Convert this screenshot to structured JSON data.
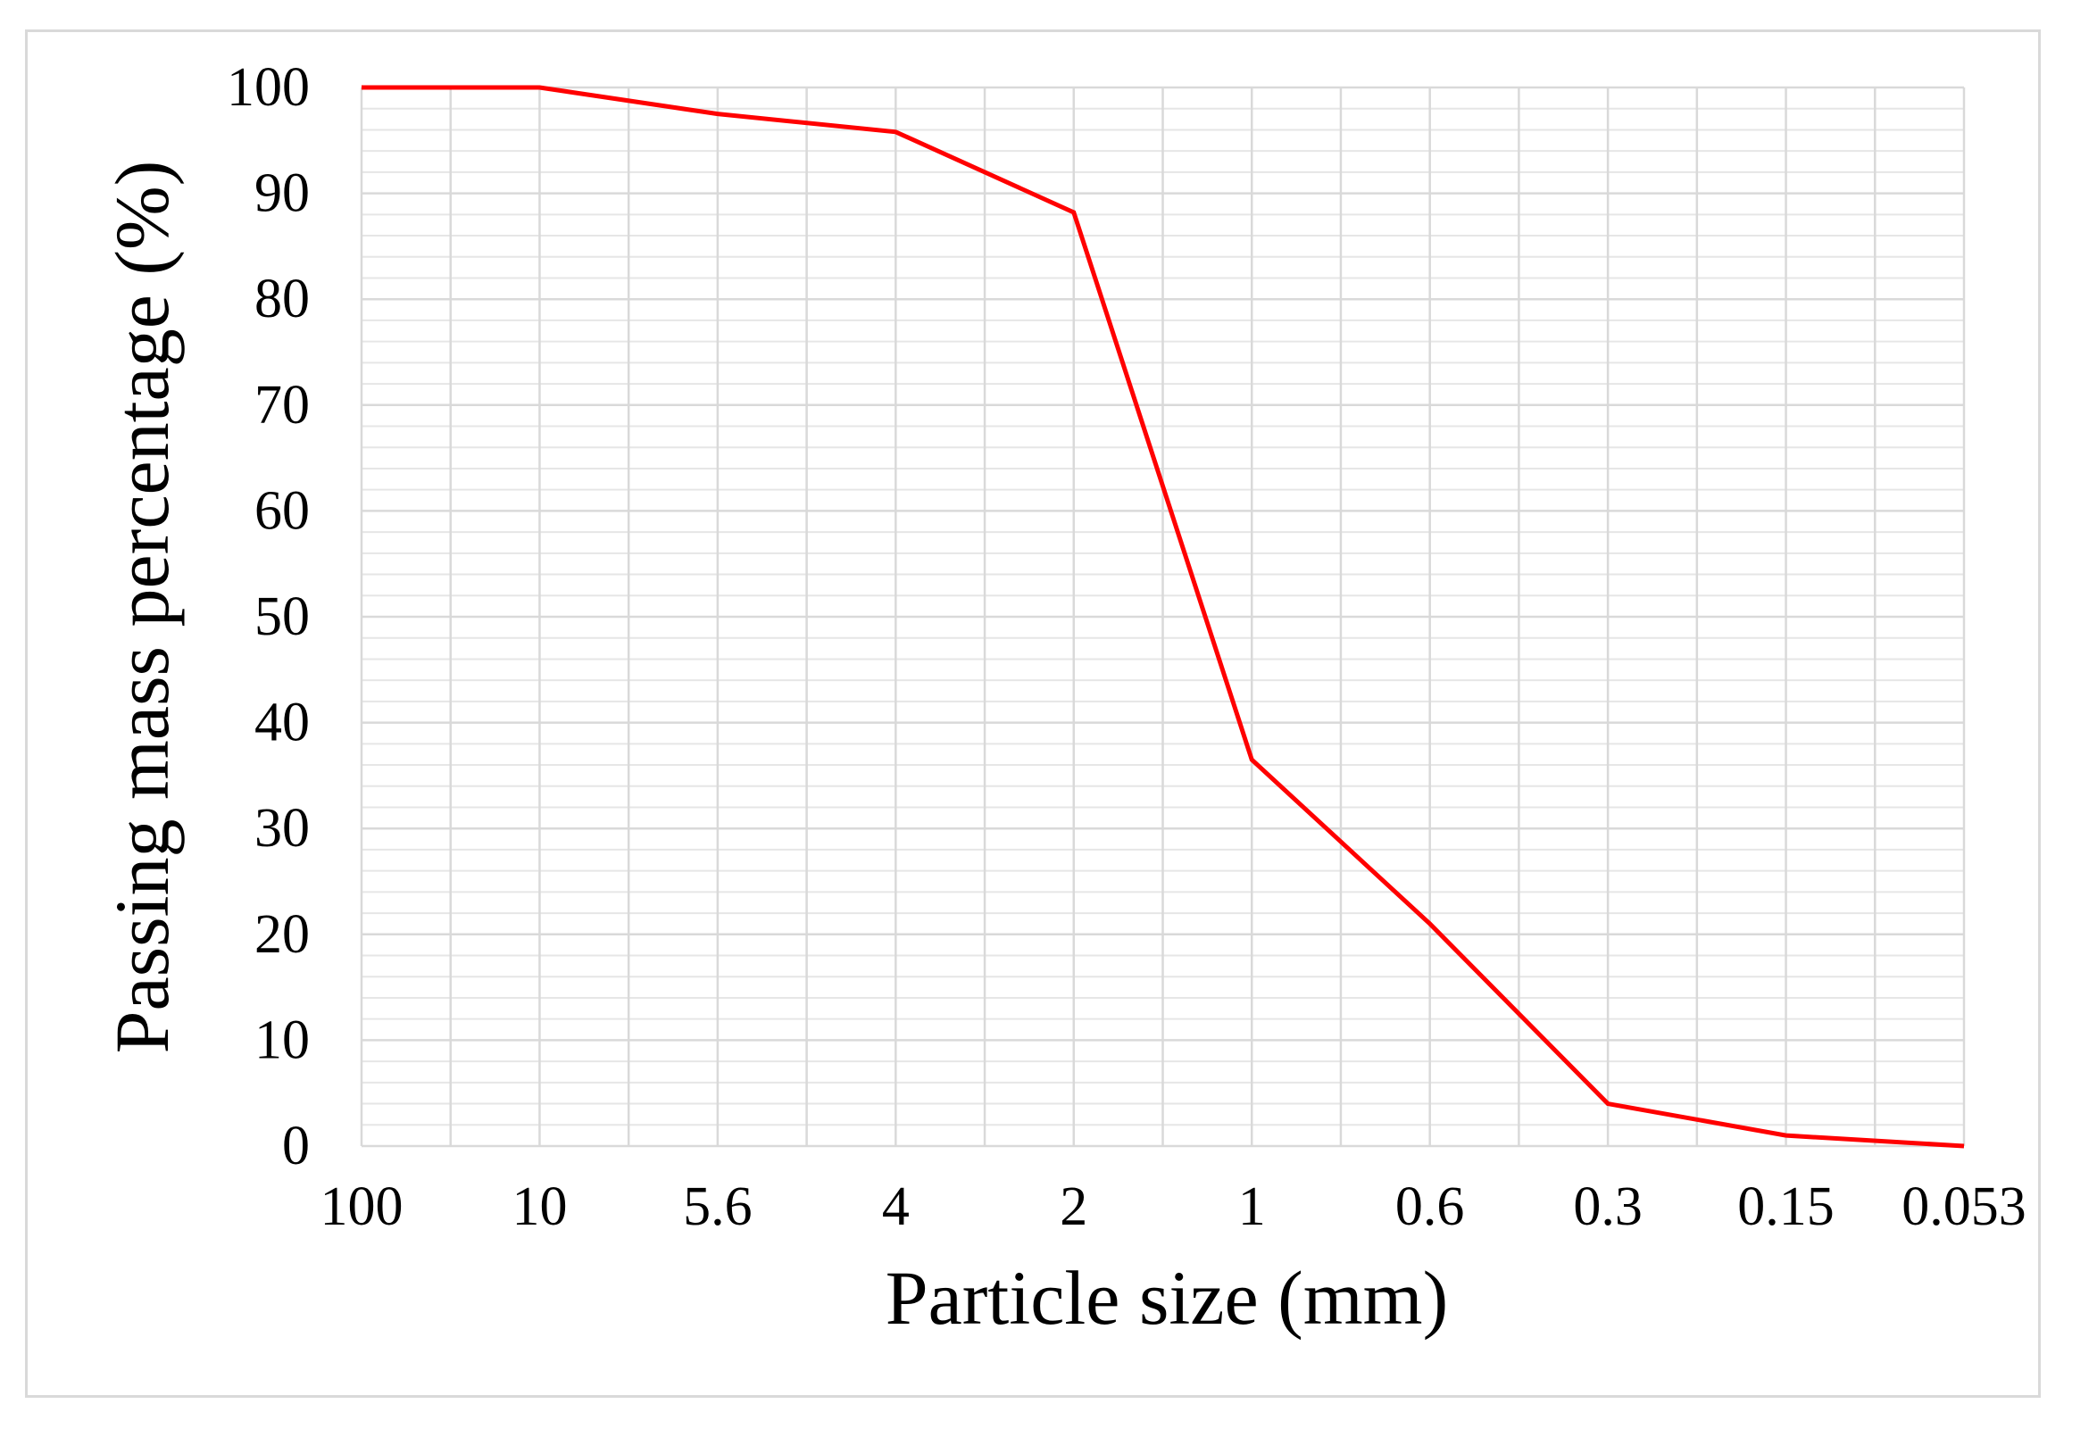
{
  "chart_data": {
    "type": "line",
    "title": "",
    "xlabel": "Particle size (mm)",
    "ylabel": "Passing mass percentage (%)",
    "x_scale": "categorical",
    "categories": [
      "100",
      "10",
      "5.6",
      "4",
      "2",
      "1",
      "0.6",
      "0.3",
      "0.15",
      "0.053"
    ],
    "series": [
      {
        "name": "",
        "color": "#ff0000",
        "values": [
          100,
          100,
          97.5,
          95.8,
          88.2,
          36.5,
          21,
          4,
          1,
          0
        ]
      }
    ],
    "ylim": [
      0,
      100
    ],
    "yticks": [
      "0",
      "10",
      "20",
      "30",
      "40",
      "50",
      "60",
      "70",
      "80",
      "90",
      "100"
    ],
    "grid": true,
    "legend": "none",
    "grid_color": "#d9d9d9",
    "minor_grid_color": "#e6e6e6"
  }
}
